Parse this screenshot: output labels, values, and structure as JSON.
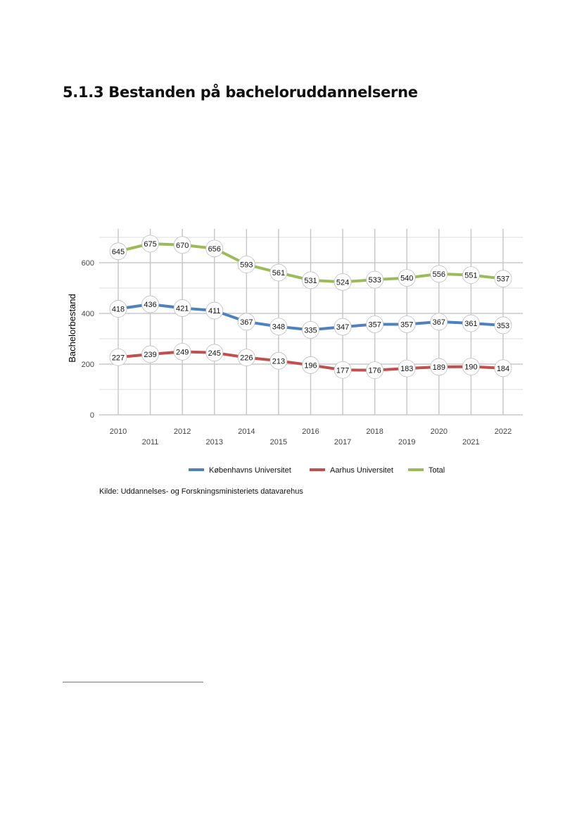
{
  "heading": "5.1.3 Bestanden på bacheloruddannelserne",
  "source": "Kilde: Uddannelses- og Forskningsministeriets datavarehus",
  "chart_data": {
    "type": "line",
    "title": "",
    "xlabel": "",
    "ylabel": "Bachelorbestand",
    "x": [
      2010,
      2011,
      2012,
      2013,
      2014,
      2015,
      2016,
      2017,
      2018,
      2019,
      2020,
      2021,
      2022
    ],
    "ylim": [
      0,
      700
    ],
    "yticks": [
      0,
      200,
      400,
      600
    ],
    "grid": true,
    "legend_position": "bottom",
    "series": [
      {
        "name": "Københavns Universitet",
        "color": "#4f81bd",
        "values": [
          418,
          436,
          421,
          411,
          367,
          348,
          335,
          347,
          357,
          357,
          367,
          361,
          353
        ]
      },
      {
        "name": "Aarhus Universitet",
        "color": "#c0504d",
        "values": [
          227,
          239,
          249,
          245,
          226,
          213,
          196,
          177,
          176,
          183,
          189,
          190,
          184
        ]
      },
      {
        "name": "Total",
        "color": "#9bbb59",
        "values": [
          645,
          675,
          670,
          656,
          593,
          561,
          531,
          524,
          533,
          540,
          556,
          551,
          537
        ]
      }
    ]
  }
}
